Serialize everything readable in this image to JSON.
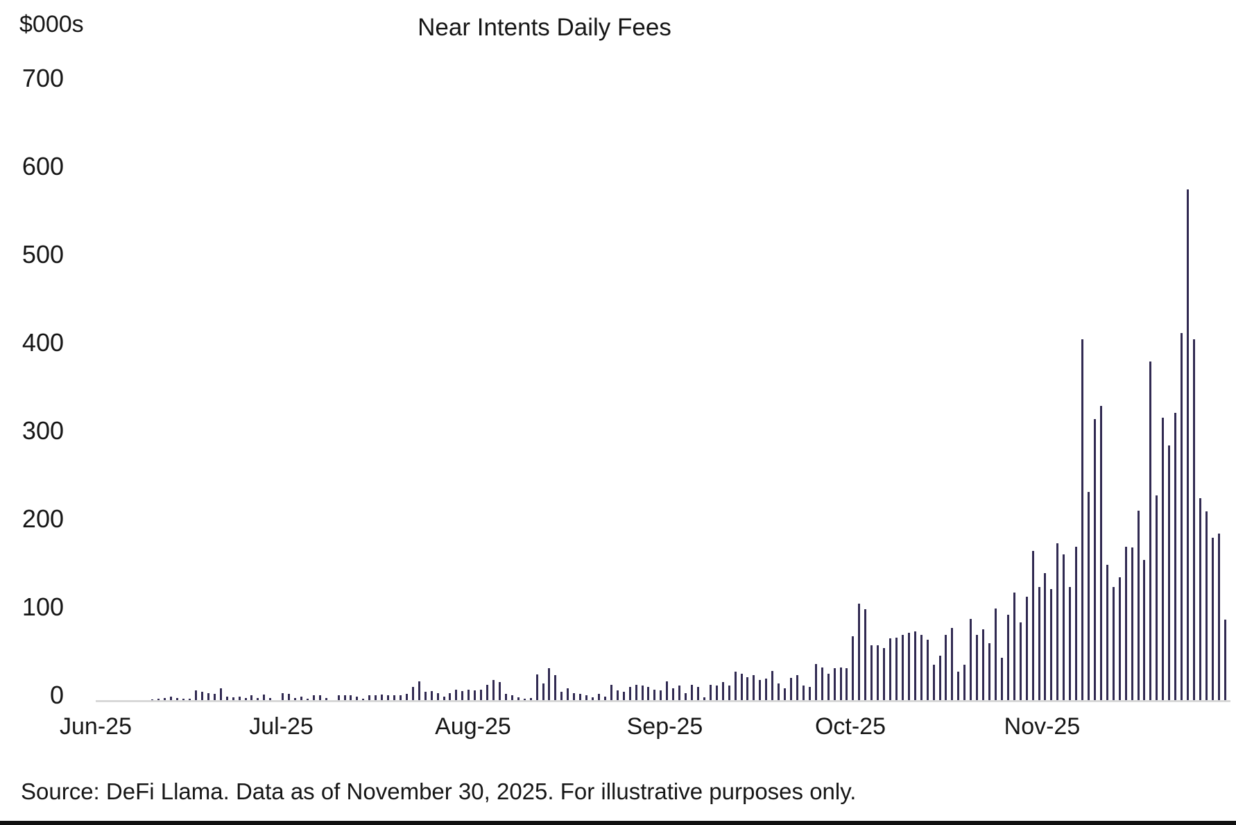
{
  "header": {
    "units_label": "$000s",
    "title": "Near Intents Daily Fees"
  },
  "footer": {
    "source_note": "Source: DeFi Llama. Data as of November 30, 2025. For illustrative purposes only."
  },
  "chart_data": {
    "type": "bar",
    "title": "Near Intents Daily Fees",
    "ylabel": "$000s",
    "xlabel": "",
    "ylim": [
      0,
      700
    ],
    "yticks": [
      700,
      600,
      500,
      400,
      300,
      200,
      100,
      0
    ],
    "grid": false,
    "legend": "none",
    "bar_color": "#312a52",
    "axis_line_color": "#d8d8d8",
    "x_unit": "day",
    "months": [
      {
        "label": "Jun-25",
        "values": [
          0.2,
          0.3,
          0.3,
          0.4,
          0.4,
          0.5,
          0.6,
          0.8,
          1,
          1.5,
          2.6,
          3,
          5,
          3,
          2,
          2.5,
          12,
          10,
          9,
          8,
          14,
          5,
          4,
          5,
          3,
          6,
          3,
          7,
          3,
          1
        ]
      },
      {
        "label": "Jul-25",
        "values": [
          9,
          8,
          3,
          5,
          2.5,
          6.5,
          6,
          3,
          0.8,
          6.5,
          6.5,
          6,
          5,
          2.5,
          6.5,
          6,
          7,
          6.5,
          6,
          6.5,
          8,
          16,
          22,
          10.5,
          11,
          9,
          5,
          9,
          12.5,
          11,
          13
        ]
      },
      {
        "label": "Aug-25",
        "values": [
          12,
          13,
          18,
          24,
          21,
          8,
          6.5,
          4,
          2,
          3,
          30,
          20,
          37,
          29,
          10,
          14,
          9,
          8,
          6,
          4,
          8,
          5,
          18,
          12,
          10,
          16,
          18,
          17,
          16,
          13,
          12
        ]
      },
      {
        "label": "Sep-25",
        "values": [
          22,
          14,
          17,
          9,
          18,
          16,
          4,
          18,
          17,
          21,
          17,
          33,
          31,
          27,
          29,
          24,
          25,
          34,
          20,
          14,
          26,
          29,
          17,
          16,
          42,
          38,
          31,
          37,
          38,
          37
        ]
      },
      {
        "label": "Oct-25",
        "values": [
          73,
          110,
          104,
          63,
          63,
          60,
          71,
          72,
          75,
          77,
          79,
          75,
          69,
          41,
          51,
          75,
          83,
          33,
          41,
          93,
          75,
          81,
          65,
          105,
          49,
          98,
          123,
          89,
          118,
          170,
          129
        ]
      },
      {
        "label": "Nov-25",
        "values": [
          145,
          127,
          179,
          166,
          129,
          175,
          410,
          237,
          320,
          335,
          154,
          129,
          140,
          175,
          174,
          216,
          160,
          385,
          233,
          321,
          290,
          327,
          417,
          580,
          410,
          230,
          215,
          185,
          190,
          92
        ]
      }
    ]
  }
}
